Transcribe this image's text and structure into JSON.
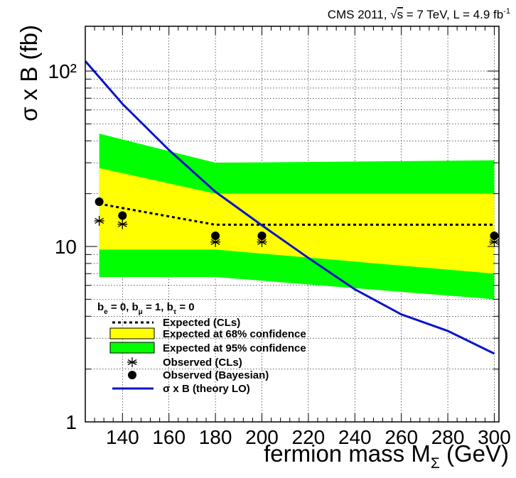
{
  "chart_data": {
    "type": "line",
    "title": "CMS 2011, √s = 7 TeV, L = 4.9 fb⁻¹",
    "title_parts": {
      "head": "CMS 2011, ",
      "sqrt": "√",
      "s": "s",
      "mid": " = 7 TeV, L = 4.9 fb",
      "sup": "-1"
    },
    "xlabel": "fermion mass M",
    "xlabel_sub": "Σ",
    "xlabel_unit": " (GeV)",
    "ylabel": "σ x B (fb)",
    "xlim": [
      124,
      302
    ],
    "ylim": [
      1,
      180
    ],
    "yscale": "log",
    "x_ticks": [
      "140",
      "160",
      "180",
      "200",
      "220",
      "240",
      "260",
      "280",
      "300"
    ],
    "y_ticks": [
      "1",
      "10",
      "10²"
    ],
    "y_tick_values": [
      1,
      10,
      100
    ],
    "grid": true,
    "legend": {
      "placement": "bottom-left",
      "header": {
        "b1": "b",
        "s1": "e",
        "t1": " = 0, b",
        "s2": "μ",
        "t2": " = 1, b",
        "s3": "τ",
        "t3": " = 0"
      },
      "entries": [
        {
          "label": "Expected (CLs)",
          "style": "dashed",
          "color": "#000000"
        },
        {
          "label": "Expected at 68% confidence",
          "style": "band",
          "color": "#ffff00"
        },
        {
          "label": "Expected at 95% confidence",
          "style": "band",
          "color": "#00ff00"
        },
        {
          "label": "Observed (CLs)",
          "style": "star-marker",
          "color": "#000000"
        },
        {
          "label": "Observed (Bayesian)",
          "style": "dot-marker",
          "color": "#000000"
        },
        {
          "label": "σ x B (theory LO)",
          "style": "line",
          "color": "#0a14c8"
        }
      ]
    },
    "colors": {
      "band68": "#ffff00",
      "band95": "#00ff00",
      "theory": "#0a14c8",
      "expected": "#000000"
    },
    "series": [
      {
        "name": "Expected at 95% confidence",
        "x": [
          130,
          180,
          300
        ],
        "low": [
          6.7,
          6.7,
          5.0
        ],
        "high": [
          44,
          30,
          31
        ]
      },
      {
        "name": "Expected at 68% confidence",
        "x": [
          130,
          180,
          300
        ],
        "low": [
          9.6,
          9.6,
          7.0
        ],
        "high": [
          28,
          20,
          20
        ]
      },
      {
        "name": "Expected (CLs)",
        "x": [
          130,
          180,
          300
        ],
        "values": [
          17.5,
          13.3,
          13.3
        ]
      },
      {
        "name": "Observed (CLs)",
        "x": [
          130,
          140,
          180,
          200,
          300
        ],
        "values": [
          14.0,
          13.4,
          10.6,
          10.6,
          10.6
        ]
      },
      {
        "name": "Observed (Bayesian)",
        "x": [
          130,
          140,
          180,
          200,
          300
        ],
        "values": [
          18.0,
          15.0,
          11.5,
          11.5,
          11.5
        ]
      },
      {
        "name": "σ x B (theory LO)",
        "x": [
          124,
          140,
          160,
          180,
          200,
          220,
          240,
          260,
          280,
          300
        ],
        "values": [
          114,
          65,
          35.5,
          20.5,
          13.2,
          8.6,
          5.7,
          4.1,
          3.3,
          2.45
        ]
      }
    ]
  }
}
